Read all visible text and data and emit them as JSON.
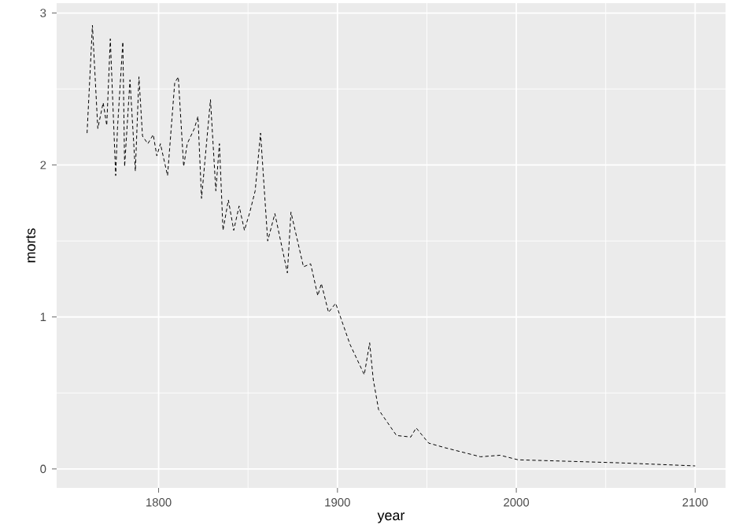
{
  "chart_data": {
    "type": "line",
    "xlabel": "year",
    "ylabel": "morts",
    "x": [
      1760,
      1763,
      1766,
      1769,
      1771,
      1773,
      1776,
      1777,
      1780,
      1781,
      1784,
      1787,
      1789,
      1791,
      1794,
      1797,
      1799,
      1801,
      1805,
      1809,
      1811,
      1814,
      1816,
      1820,
      1822,
      1824,
      1829,
      1832,
      1834,
      1836,
      1839,
      1842,
      1845,
      1848,
      1851,
      1854,
      1857,
      1861,
      1865,
      1872,
      1874,
      1881,
      1885,
      1889,
      1891,
      1895,
      1899,
      1907,
      1915,
      1918,
      1920,
      1923,
      1933,
      1941,
      1944,
      1951,
      1960,
      1980,
      1991,
      2001,
      2030,
      2058,
      2100
    ],
    "series": [
      {
        "color": "#000000",
        "line_style": "dashed",
        "values": [
          2.21,
          2.92,
          2.24,
          2.41,
          2.26,
          2.83,
          1.93,
          2.24,
          2.81,
          1.99,
          2.56,
          1.96,
          2.58,
          2.19,
          2.14,
          2.2,
          2.06,
          2.14,
          1.93,
          2.54,
          2.58,
          1.99,
          2.14,
          2.24,
          2.32,
          1.78,
          2.43,
          1.83,
          2.14,
          1.57,
          1.77,
          1.57,
          1.73,
          1.57,
          1.69,
          1.83,
          2.21,
          1.5,
          1.68,
          1.29,
          1.69,
          1.33,
          1.35,
          1.14,
          1.22,
          1.03,
          1.09,
          0.82,
          0.62,
          0.83,
          0.59,
          0.39,
          0.22,
          0.21,
          0.27,
          0.17,
          0.14,
          0.08,
          0.09,
          0.06,
          0.05,
          0.04,
          0.02
        ]
      }
    ],
    "xlim": [
      1743,
      2117
    ],
    "ylim": [
      -0.125,
      3.065
    ],
    "xticks": [
      1800,
      1900,
      2000,
      2100
    ],
    "yticks": [
      0,
      1,
      2,
      3
    ],
    "grid": true,
    "marker": "none"
  }
}
